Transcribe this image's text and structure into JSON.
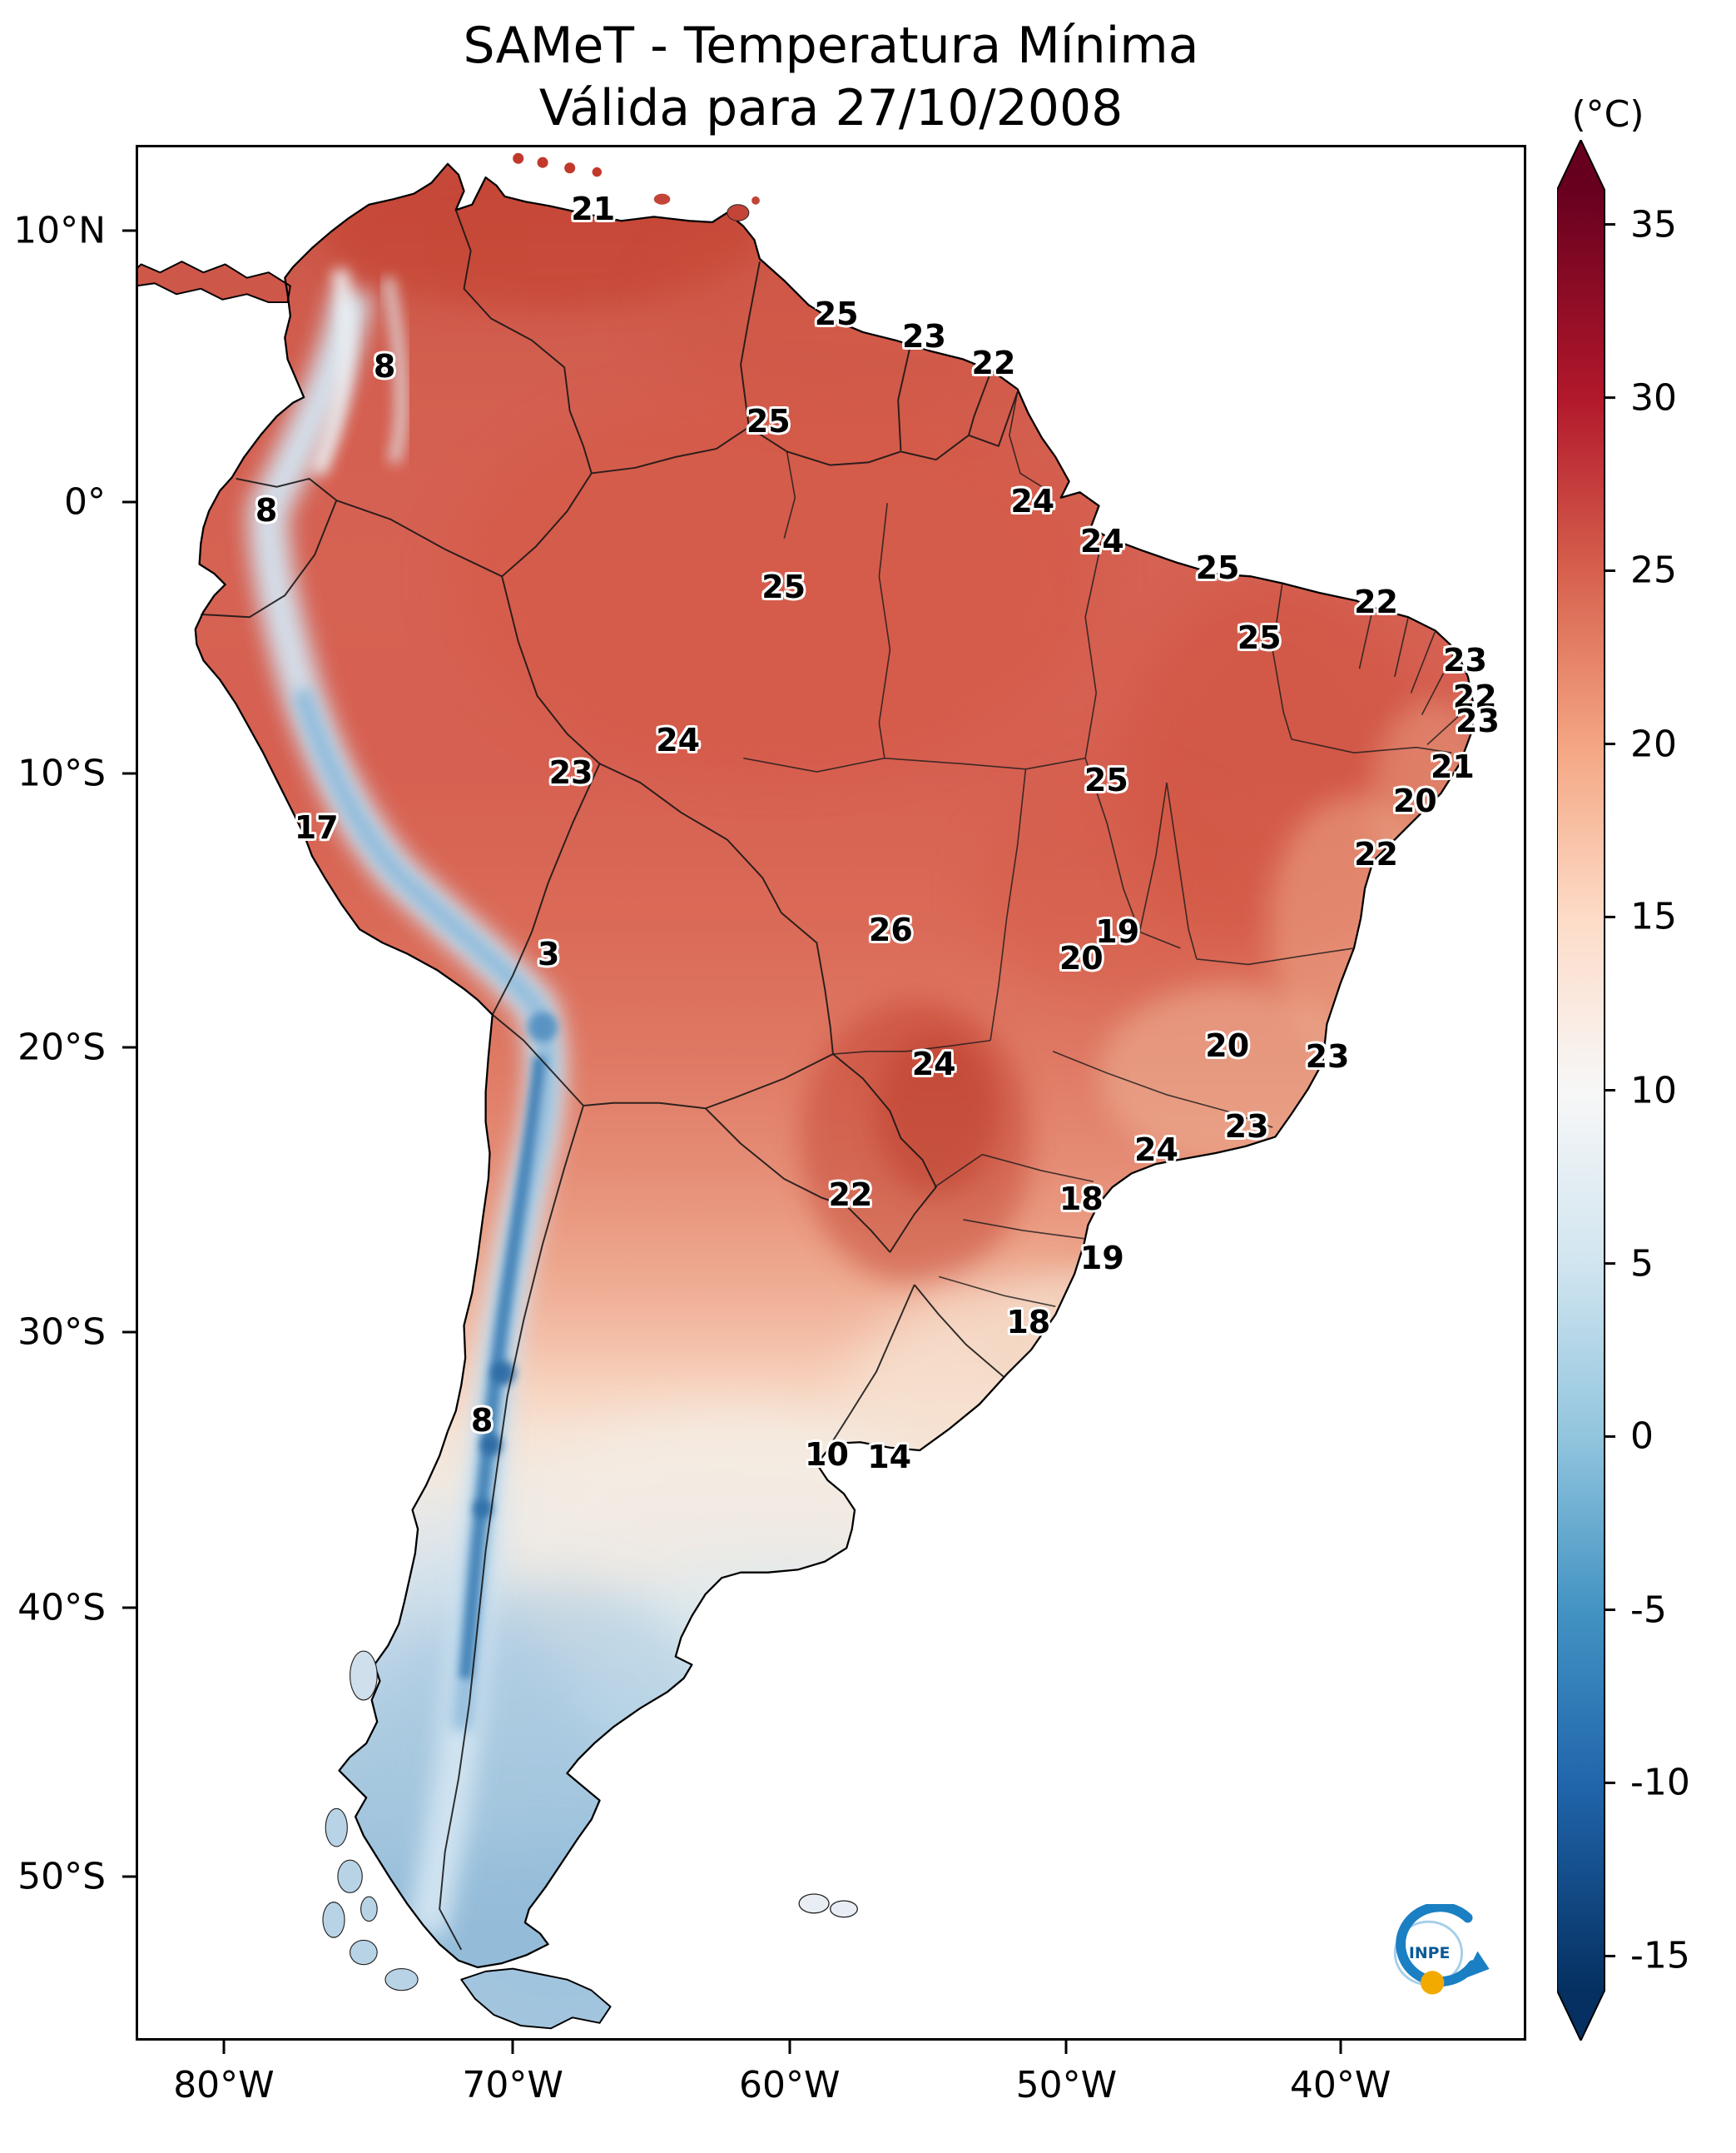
{
  "title": {
    "line1": "SAMeT - Temperatura Mínima",
    "line2": "Válida para 27/10/2008"
  },
  "axes": {
    "y_ticks": [
      {
        "label": "10°N",
        "f": 0.0451
      },
      {
        "label": "0°",
        "f": 0.1883
      },
      {
        "label": "10°S",
        "f": 0.3314
      },
      {
        "label": "20°S",
        "f": 0.476
      },
      {
        "label": "30°S",
        "f": 0.6263
      },
      {
        "label": "40°S",
        "f": 0.7716
      },
      {
        "label": "50°S",
        "f": 0.9134
      }
    ],
    "x_ticks": [
      {
        "label": "80°W",
        "f": 0.0634
      },
      {
        "label": "70°W",
        "f": 0.2712
      },
      {
        "label": "60°W",
        "f": 0.4702
      },
      {
        "label": "50°W",
        "f": 0.6693
      },
      {
        "label": "40°W",
        "f": 0.8663
      }
    ]
  },
  "colorbar": {
    "unit": "(°C)",
    "ticks": [
      {
        "label": "35",
        "f": 0.0192
      },
      {
        "label": "30",
        "f": 0.1154
      },
      {
        "label": "25",
        "f": 0.2115
      },
      {
        "label": "20",
        "f": 0.3077
      },
      {
        "label": "15",
        "f": 0.4038
      },
      {
        "label": "10",
        "f": 0.5
      },
      {
        "label": "5",
        "f": 0.5962
      },
      {
        "label": "0",
        "f": 0.6923
      },
      {
        "label": "-5",
        "f": 0.7885
      },
      {
        "label": "-10",
        "f": 0.8846
      },
      {
        "label": "-15",
        "f": 0.9808
      }
    ],
    "gradient_stops": [
      {
        "f": 0.0,
        "color": "#67001f"
      },
      {
        "f": 0.1154,
        "color": "#b2182b"
      },
      {
        "f": 0.2115,
        "color": "#d6604d"
      },
      {
        "f": 0.3077,
        "color": "#f4a582"
      },
      {
        "f": 0.4038,
        "color": "#fddbc7"
      },
      {
        "f": 0.5,
        "color": "#f7f7f7"
      },
      {
        "f": 0.5962,
        "color": "#d1e5f0"
      },
      {
        "f": 0.6923,
        "color": "#92c5de"
      },
      {
        "f": 0.7885,
        "color": "#4393c3"
      },
      {
        "f": 0.8846,
        "color": "#2166ac"
      },
      {
        "f": 1.0,
        "color": "#053061"
      }
    ]
  },
  "chart_data": {
    "type": "heatmap",
    "region": "South America",
    "title": "SAMeT - Temperatura Mínima",
    "subtitle": "Válida para 27/10/2008",
    "unit": "°C",
    "value_range": [
      -15,
      35
    ],
    "colormap": "diverging blue-white-red (white near 10 °C)",
    "labels": [
      {
        "value": "21",
        "x": 32.9,
        "y": 3.4
      },
      {
        "value": "25",
        "x": 50.4,
        "y": 8.9
      },
      {
        "value": "23",
        "x": 56.7,
        "y": 10.1
      },
      {
        "value": "22",
        "x": 61.7,
        "y": 11.5
      },
      {
        "value": "8",
        "x": 17.9,
        "y": 11.7
      },
      {
        "value": "25",
        "x": 45.5,
        "y": 14.6
      },
      {
        "value": "8",
        "x": 9.4,
        "y": 19.3
      },
      {
        "value": "24",
        "x": 64.5,
        "y": 18.8
      },
      {
        "value": "24",
        "x": 69.5,
        "y": 20.9
      },
      {
        "value": "25",
        "x": 46.6,
        "y": 23.3
      },
      {
        "value": "25",
        "x": 77.8,
        "y": 22.3
      },
      {
        "value": "22",
        "x": 89.2,
        "y": 24.1
      },
      {
        "value": "25",
        "x": 80.8,
        "y": 26.0
      },
      {
        "value": "23",
        "x": 95.6,
        "y": 27.2
      },
      {
        "value": "22",
        "x": 96.3,
        "y": 29.1
      },
      {
        "value": "23",
        "x": 96.5,
        "y": 30.4
      },
      {
        "value": "24",
        "x": 39.0,
        "y": 31.4
      },
      {
        "value": "23",
        "x": 31.3,
        "y": 33.1
      },
      {
        "value": "25",
        "x": 69.8,
        "y": 33.5
      },
      {
        "value": "21",
        "x": 94.7,
        "y": 32.8
      },
      {
        "value": "20",
        "x": 92.0,
        "y": 34.6
      },
      {
        "value": "17",
        "x": 13.0,
        "y": 36.0
      },
      {
        "value": "22",
        "x": 89.2,
        "y": 37.4
      },
      {
        "value": "3",
        "x": 29.7,
        "y": 42.7
      },
      {
        "value": "26",
        "x": 54.3,
        "y": 41.4
      },
      {
        "value": "19",
        "x": 70.6,
        "y": 41.5
      },
      {
        "value": "20",
        "x": 68.0,
        "y": 42.9
      },
      {
        "value": "24",
        "x": 57.4,
        "y": 48.5
      },
      {
        "value": "20",
        "x": 78.5,
        "y": 47.5
      },
      {
        "value": "23",
        "x": 85.7,
        "y": 48.1
      },
      {
        "value": "23",
        "x": 79.9,
        "y": 51.8
      },
      {
        "value": "24",
        "x": 73.4,
        "y": 53.0
      },
      {
        "value": "22",
        "x": 51.4,
        "y": 55.4
      },
      {
        "value": "18",
        "x": 68.0,
        "y": 55.6
      },
      {
        "value": "19",
        "x": 69.5,
        "y": 58.7
      },
      {
        "value": "18",
        "x": 64.2,
        "y": 62.1
      },
      {
        "value": "8",
        "x": 24.9,
        "y": 67.3
      },
      {
        "value": "10",
        "x": 49.7,
        "y": 69.1
      },
      {
        "value": "14",
        "x": 54.2,
        "y": 69.2
      }
    ]
  },
  "logo": {
    "text": "INPE"
  }
}
